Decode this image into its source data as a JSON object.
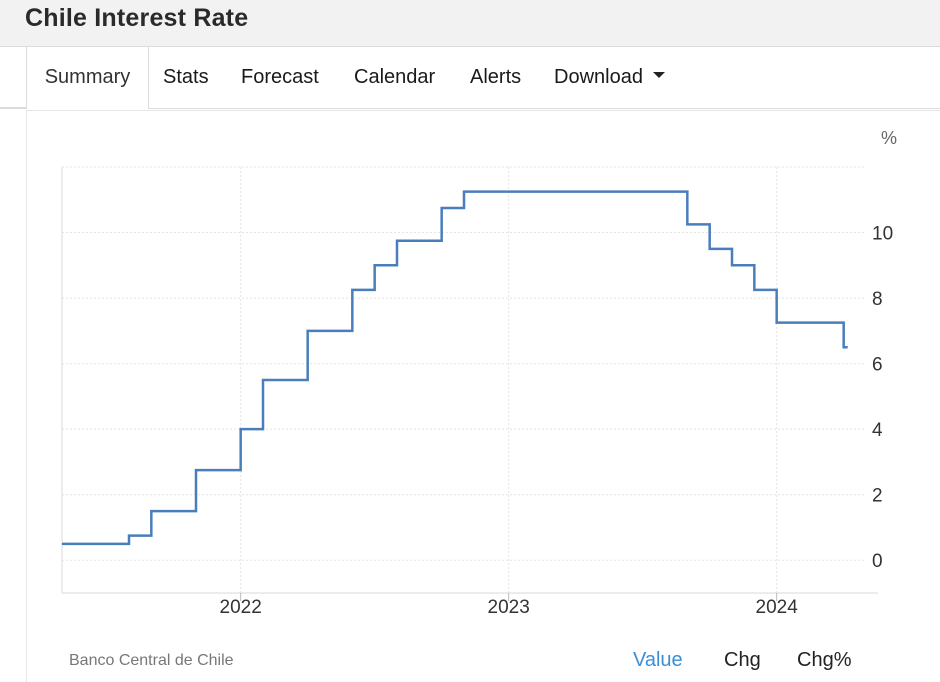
{
  "page": {
    "title": "Chile Interest Rate"
  },
  "tabs": [
    {
      "label": "Summary",
      "active": true
    },
    {
      "label": "Stats"
    },
    {
      "label": "Forecast"
    },
    {
      "label": "Calendar"
    },
    {
      "label": "Alerts"
    },
    {
      "label": "Download",
      "icon": "caret-down-icon"
    }
  ],
  "chart": {
    "unit_label": "%",
    "source": "Banco Central de Chile",
    "line_color": "#4a7ebb",
    "grid_color": "#e4e4e4"
  },
  "chart_data": {
    "type": "line",
    "title": "",
    "xlabel": "",
    "ylabel": "%",
    "step": true,
    "x_ticks": [
      "2022",
      "2023",
      "2024"
    ],
    "y_ticks": [
      "0",
      "2",
      "4",
      "6",
      "8",
      "10"
    ],
    "xlim": [
      "2021-05",
      "2024-05"
    ],
    "ylim": [
      -1,
      12
    ],
    "series": [
      {
        "x": [
          "2021-06",
          "2021-08",
          "2021-09",
          "2021-11",
          "2022-01",
          "2022-02",
          "2022-04",
          "2022-06",
          "2022-07",
          "2022-08",
          "2022-10",
          "2022-11",
          "2023-09",
          "2023-10",
          "2023-11",
          "2023-12",
          "2024-01",
          "2024-02",
          "2024-04"
        ],
        "values": [
          0.5,
          0.75,
          1.5,
          2.75,
          4.0,
          5.5,
          7.0,
          8.25,
          9.0,
          9.75,
          10.75,
          11.25,
          10.25,
          9.5,
          9.0,
          8.25,
          7.25,
          7.25,
          6.5
        ]
      }
    ],
    "grid": true,
    "legend": ""
  },
  "footer": {
    "value_label": "Value",
    "chg_label": "Chg",
    "chgpct_label": "Chg%"
  }
}
